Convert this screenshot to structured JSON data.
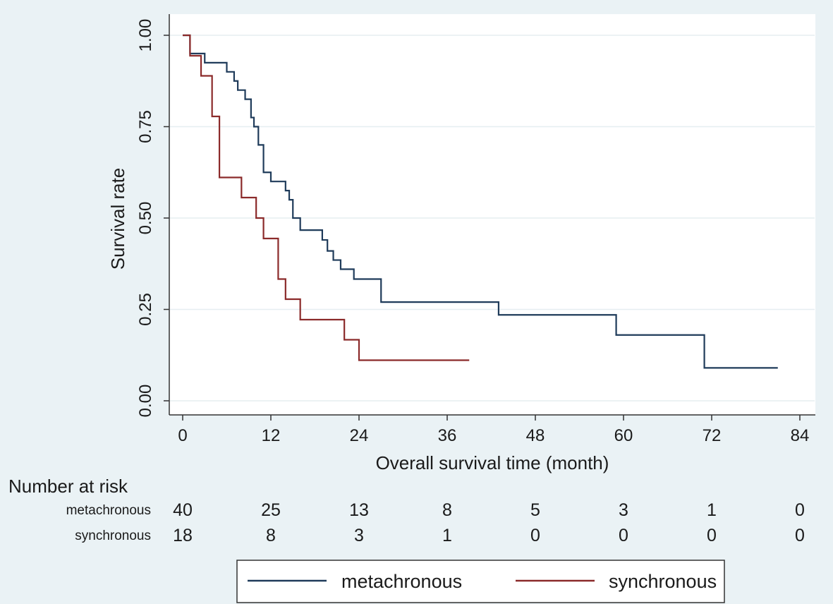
{
  "chart_data": {
    "type": "line",
    "title": "",
    "xlabel": "Overall survival time (month)",
    "ylabel": "Survival rate",
    "xlim": [
      0,
      84
    ],
    "ylim": [
      0,
      1
    ],
    "xticks": [
      0,
      12,
      24,
      36,
      48,
      60,
      72,
      84
    ],
    "xtick_labels": [
      "0",
      "12",
      "24",
      "36",
      "48",
      "60",
      "72",
      "84"
    ],
    "yticks": [
      0,
      0.25,
      0.5,
      0.75,
      1
    ],
    "ytick_labels": [
      "0.00",
      "0.25",
      "0.50",
      "0.75",
      "1.00"
    ],
    "grid": true,
    "legend_position": "bottom",
    "series": [
      {
        "name": "metachronous",
        "color": "#1f3b5a",
        "steps": [
          [
            0,
            1.0
          ],
          [
            1,
            0.95
          ],
          [
            3,
            0.925
          ],
          [
            6,
            0.9
          ],
          [
            7,
            0.875
          ],
          [
            7.5,
            0.85
          ],
          [
            8.5,
            0.825
          ],
          [
            9.3,
            0.775
          ],
          [
            9.7,
            0.75
          ],
          [
            10.3,
            0.7
          ],
          [
            11,
            0.625
          ],
          [
            12,
            0.6
          ],
          [
            14,
            0.575
          ],
          [
            14.5,
            0.55
          ],
          [
            15,
            0.5
          ],
          [
            16,
            0.467
          ],
          [
            19,
            0.44
          ],
          [
            19.7,
            0.41
          ],
          [
            20.5,
            0.385
          ],
          [
            21.5,
            0.36
          ],
          [
            23.3,
            0.333
          ],
          [
            27,
            0.27
          ],
          [
            43,
            0.235
          ],
          [
            59,
            0.18
          ],
          [
            71,
            0.09
          ],
          [
            81,
            0.09
          ]
        ]
      },
      {
        "name": "synchronous",
        "color": "#8b2a2a",
        "steps": [
          [
            0,
            1.0
          ],
          [
            1,
            0.944
          ],
          [
            2.5,
            0.889
          ],
          [
            4,
            0.778
          ],
          [
            5,
            0.611
          ],
          [
            8,
            0.556
          ],
          [
            10,
            0.5
          ],
          [
            11,
            0.444
          ],
          [
            13,
            0.333
          ],
          [
            14,
            0.278
          ],
          [
            16,
            0.222
          ],
          [
            22,
            0.167
          ],
          [
            24,
            0.111
          ],
          [
            39,
            0.111
          ]
        ]
      }
    ],
    "risk_table": {
      "title": "Number at risk",
      "times": [
        0,
        12,
        24,
        36,
        48,
        60,
        72,
        84
      ],
      "rows": [
        {
          "label": "metachronous",
          "values": [
            "40",
            "25",
            "13",
            "8",
            "5",
            "3",
            "1",
            "0"
          ]
        },
        {
          "label": "synchronous",
          "values": [
            "18",
            "8",
            "3",
            "1",
            "0",
            "0",
            "0",
            "0"
          ]
        }
      ]
    },
    "legend": [
      "metachronous",
      "synchronous"
    ]
  }
}
